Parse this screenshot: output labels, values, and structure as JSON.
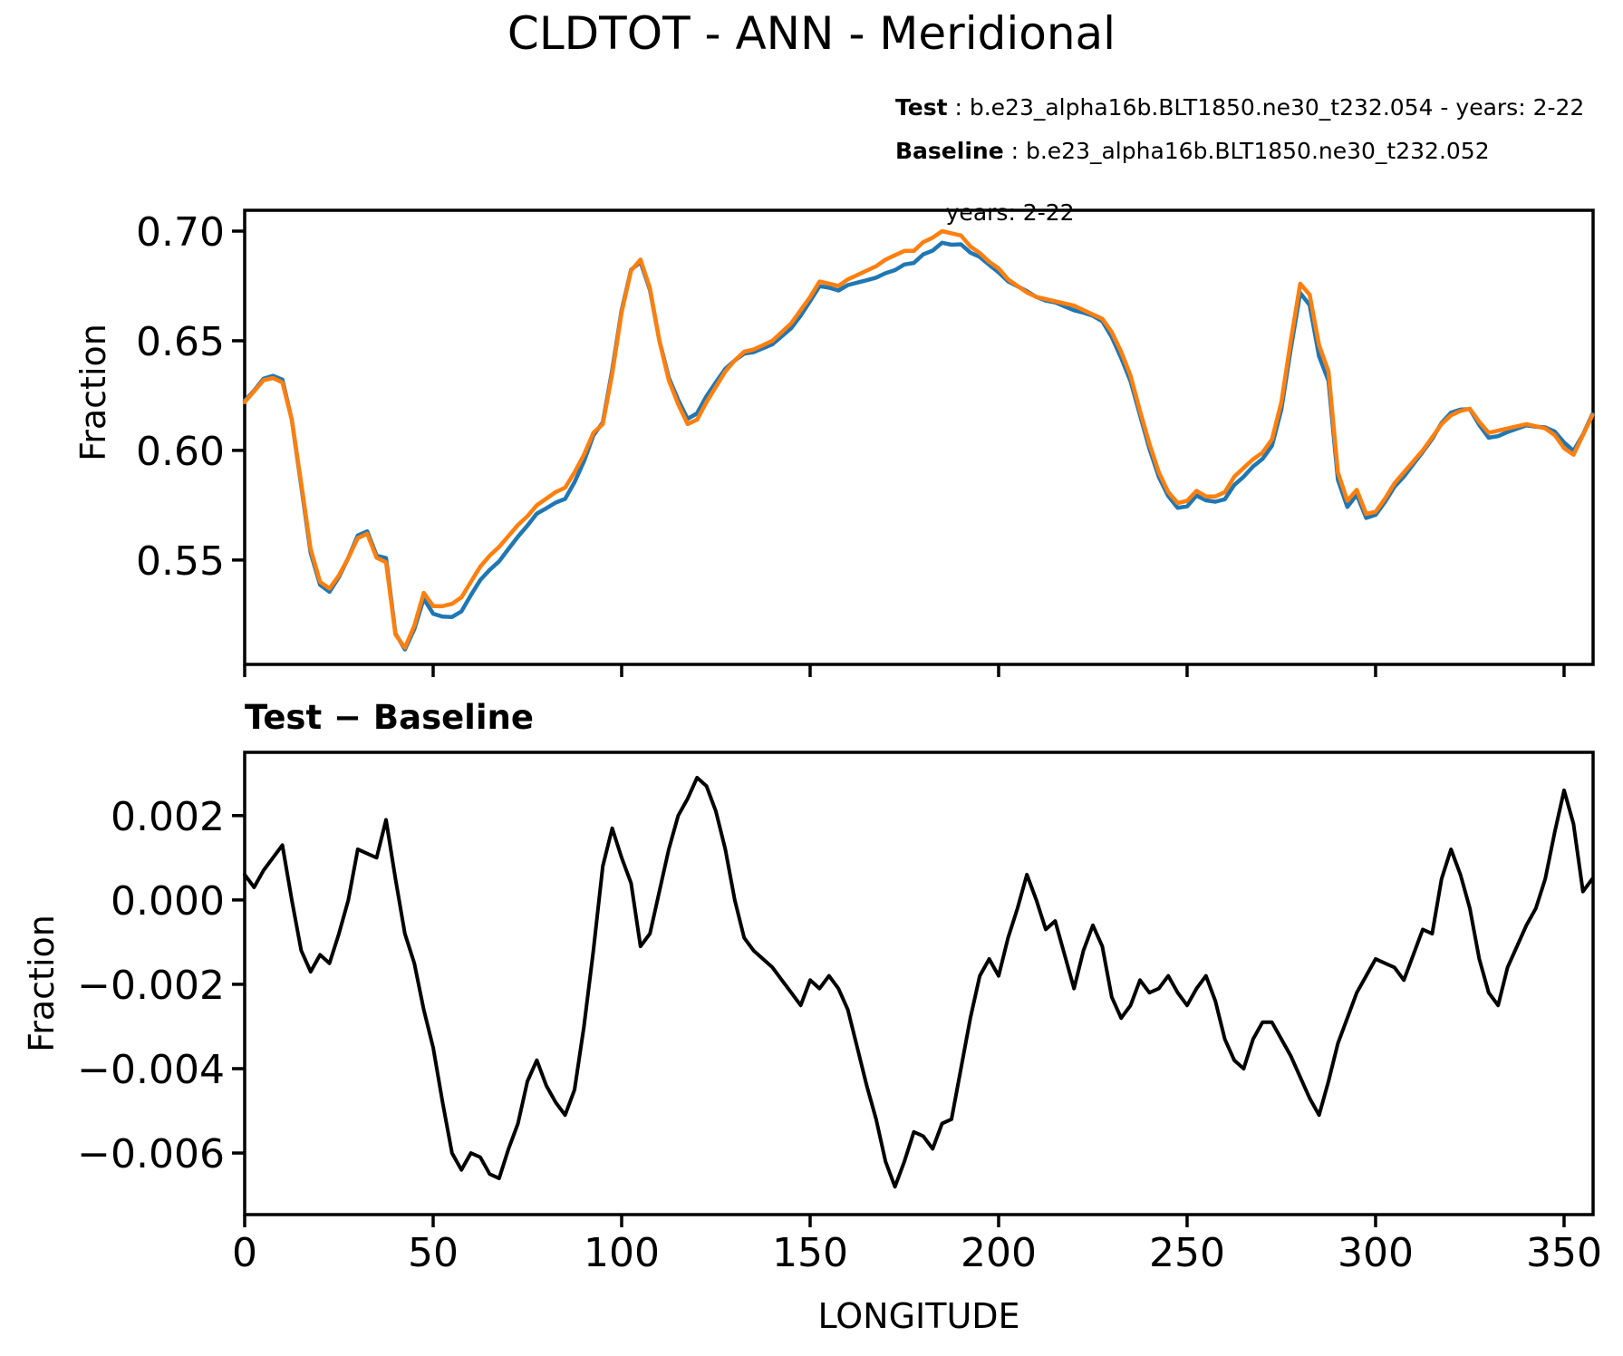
{
  "title": "CLDTOT - ANN - Meridional",
  "subtitle": "Test − Baseline",
  "legend": {
    "test_name": "Test",
    "test_desc": " : b.e23_alpha16b.BLT1850.ne30_t232.054 - years: 2-22",
    "baseline_name": "Baseline",
    "baseline_desc": " : b.e23_alpha16b.BLT1850.ne30_t232.052",
    "baseline_desc_line2": "years: 2-22"
  },
  "colors": {
    "test": "#1f77b4",
    "baseline": "#ff7f0e",
    "diff": "#000000",
    "axis": "#000000"
  },
  "top_chart": {
    "ylabel": "Fraction",
    "ytick_labels": [
      "0.70",
      "0.65",
      "0.60",
      "0.55"
    ]
  },
  "bottom_chart": {
    "ylabel": "Fraction",
    "xlabel": "LONGITUDE",
    "ytick_labels": [
      "0.002",
      "0.000",
      "−0.002",
      "−0.004",
      "−0.006"
    ],
    "xtick_labels": [
      "0",
      "50",
      "100",
      "150",
      "200",
      "250",
      "300",
      "350"
    ]
  },
  "chart_data": [
    {
      "type": "line",
      "title": "CLDTOT - ANN - Meridional",
      "xlabel": "",
      "ylabel": "Fraction",
      "x": {
        "start": 0,
        "step": 2.5,
        "count": 144
      },
      "xlim": [
        0,
        357.7
      ],
      "ylim": [
        0.5024,
        0.7095
      ],
      "yticks": [
        0.7,
        0.65,
        0.6,
        0.55
      ],
      "xticks": [
        0,
        50,
        100,
        150,
        200,
        250,
        300,
        350
      ],
      "grid": false,
      "legend_position": "above-right",
      "series": [
        {
          "name": "Test",
          "label": "Test : b.e23_alpha16b.BLT1850.ne30_t232.054 - years: 2-22",
          "color": "#1f77b4",
          "values": [
            0.6226,
            0.6273,
            0.6327,
            0.634,
            0.6323,
            0.614,
            0.5838,
            0.5533,
            0.5387,
            0.5355,
            0.5422,
            0.551,
            0.5612,
            0.5631,
            0.552,
            0.5509,
            0.5165,
            0.5092,
            0.5185,
            0.5324,
            0.5255,
            0.5242,
            0.524,
            0.5266,
            0.534,
            0.5409,
            0.5455,
            0.5494,
            0.5551,
            0.5607,
            0.5657,
            0.5712,
            0.5736,
            0.5762,
            0.5779,
            0.5855,
            0.595,
            0.6068,
            0.6128,
            0.6367,
            0.664,
            0.6824,
            0.6859,
            0.6732,
            0.6502,
            0.6332,
            0.623,
            0.6144,
            0.6169,
            0.6247,
            0.6311,
            0.6372,
            0.641,
            0.6441,
            0.6448,
            0.6466,
            0.6484,
            0.6521,
            0.6558,
            0.6615,
            0.6681,
            0.6749,
            0.6742,
            0.6729,
            0.6754,
            0.6765,
            0.6776,
            0.6788,
            0.6808,
            0.6822,
            0.6848,
            0.6855,
            0.6894,
            0.6911,
            0.6947,
            0.6938,
            0.694,
            0.6902,
            0.6882,
            0.6846,
            0.6812,
            0.6771,
            0.6748,
            0.6726,
            0.67,
            0.6683,
            0.6675,
            0.6657,
            0.6639,
            0.6628,
            0.6614,
            0.6589,
            0.6517,
            0.6422,
            0.6315,
            0.6161,
            0.6008,
            0.5879,
            0.5792,
            0.5738,
            0.5745,
            0.5794,
            0.5772,
            0.5766,
            0.5777,
            0.5842,
            0.588,
            0.5927,
            0.5961,
            0.6021,
            0.6187,
            0.6463,
            0.6718,
            0.6663,
            0.6429,
            0.6317,
            0.5866,
            0.5742,
            0.5798,
            0.5692,
            0.5706,
            0.5765,
            0.5834,
            0.5881,
            0.5937,
            0.5993,
            0.6052,
            0.6125,
            0.6172,
            0.6186,
            0.6188,
            0.6116,
            0.6058,
            0.6065,
            0.6084,
            0.6099,
            0.6114,
            0.6108,
            0.6105,
            0.6086,
            0.6036,
            0.5998,
            0.6072,
            0.6165
          ]
        },
        {
          "name": "Baseline",
          "label": "Baseline : b.e23_alpha16b.BLT1850.ne30_t232.052 years: 2-22",
          "color": "#ff7f0e",
          "values": [
            0.622,
            0.627,
            0.632,
            0.633,
            0.631,
            0.614,
            0.585,
            0.555,
            0.54,
            0.537,
            0.543,
            0.551,
            0.56,
            0.562,
            0.551,
            0.549,
            0.516,
            0.51,
            0.52,
            0.535,
            0.529,
            0.529,
            0.53,
            0.533,
            0.54,
            0.547,
            0.552,
            0.556,
            0.561,
            0.566,
            0.57,
            0.575,
            0.578,
            0.581,
            0.583,
            0.59,
            0.598,
            0.608,
            0.612,
            0.635,
            0.663,
            0.682,
            0.687,
            0.674,
            0.65,
            0.632,
            0.621,
            0.612,
            0.614,
            0.622,
            0.629,
            0.636,
            0.641,
            0.645,
            0.646,
            0.648,
            0.65,
            0.654,
            0.658,
            0.664,
            0.67,
            0.677,
            0.676,
            0.675,
            0.678,
            0.68,
            0.682,
            0.684,
            0.687,
            0.689,
            0.691,
            0.691,
            0.695,
            0.697,
            0.7,
            0.699,
            0.698,
            0.693,
            0.69,
            0.686,
            0.683,
            0.678,
            0.675,
            0.672,
            0.67,
            0.669,
            0.668,
            0.667,
            0.666,
            0.664,
            0.662,
            0.66,
            0.654,
            0.645,
            0.634,
            0.618,
            0.603,
            0.59,
            0.581,
            0.576,
            0.577,
            0.5815,
            0.579,
            0.579,
            0.581,
            0.588,
            0.592,
            0.596,
            0.599,
            0.605,
            0.622,
            0.65,
            0.676,
            0.671,
            0.648,
            0.636,
            0.59,
            0.577,
            0.582,
            0.571,
            0.572,
            0.578,
            0.585,
            0.59,
            0.595,
            0.6,
            0.606,
            0.612,
            0.616,
            0.618,
            0.619,
            0.613,
            0.608,
            0.609,
            0.61,
            0.611,
            0.612,
            0.611,
            0.61,
            0.607,
            0.601,
            0.598,
            0.607,
            0.616
          ]
        }
      ]
    },
    {
      "type": "line",
      "title": "Test − Baseline",
      "xlabel": "LONGITUDE",
      "ylabel": "Fraction",
      "x": {
        "start": 0,
        "step": 2.5,
        "count": 144
      },
      "xlim": [
        0,
        357.7
      ],
      "ylim": [
        -0.00746,
        0.0035
      ],
      "yticks": [
        0.002,
        0.0,
        -0.002,
        -0.004,
        -0.006
      ],
      "xticks": [
        0,
        50,
        100,
        150,
        200,
        250,
        300,
        350
      ],
      "grid": false,
      "series": [
        {
          "name": "Test − Baseline",
          "color": "#000000",
          "values": [
            0.0006,
            0.0003,
            0.0007,
            0.001,
            0.0013,
            0.0,
            -0.0012,
            -0.0017,
            -0.0013,
            -0.0015,
            -0.0008,
            0.0,
            0.0012,
            0.0011,
            0.001,
            0.0019,
            0.0005,
            -0.0008,
            -0.0015,
            -0.0026,
            -0.0035,
            -0.0048,
            -0.006,
            -0.0064,
            -0.006,
            -0.0061,
            -0.0065,
            -0.0066,
            -0.0059,
            -0.0053,
            -0.0043,
            -0.0038,
            -0.0044,
            -0.0048,
            -0.0051,
            -0.0045,
            -0.003,
            -0.0012,
            0.0008,
            0.0017,
            0.001,
            0.0004,
            -0.0011,
            -0.0008,
            0.0002,
            0.0012,
            0.002,
            0.0024,
            0.0029,
            0.0027,
            0.0021,
            0.0012,
            0.0,
            -0.0009,
            -0.0012,
            -0.0014,
            -0.0016,
            -0.0019,
            -0.0022,
            -0.0025,
            -0.0019,
            -0.0021,
            -0.0018,
            -0.0021,
            -0.0026,
            -0.0035,
            -0.0044,
            -0.0052,
            -0.0062,
            -0.0068,
            -0.0062,
            -0.0055,
            -0.0056,
            -0.0059,
            -0.0053,
            -0.0052,
            -0.004,
            -0.0028,
            -0.0018,
            -0.0014,
            -0.0018,
            -0.0009,
            -0.0002,
            0.0006,
            0.0,
            -0.0007,
            -0.0005,
            -0.0013,
            -0.0021,
            -0.0012,
            -0.0006,
            -0.0011,
            -0.0023,
            -0.0028,
            -0.0025,
            -0.0019,
            -0.0022,
            -0.0021,
            -0.0018,
            -0.0022,
            -0.0025,
            -0.0021,
            -0.0018,
            -0.0024,
            -0.0033,
            -0.0038,
            -0.004,
            -0.0033,
            -0.0029,
            -0.0029,
            -0.0033,
            -0.0037,
            -0.0042,
            -0.0047,
            -0.0051,
            -0.0043,
            -0.0034,
            -0.0028,
            -0.0022,
            -0.0018,
            -0.0014,
            -0.0015,
            -0.0016,
            -0.0019,
            -0.0013,
            -0.0007,
            -0.0008,
            0.0005,
            0.0012,
            0.0006,
            -0.0002,
            -0.0014,
            -0.0022,
            -0.0025,
            -0.0016,
            -0.0011,
            -0.0006,
            -0.0002,
            0.0005,
            0.0016,
            0.0026,
            0.0018,
            0.0002,
            0.0005
          ]
        }
      ]
    }
  ]
}
